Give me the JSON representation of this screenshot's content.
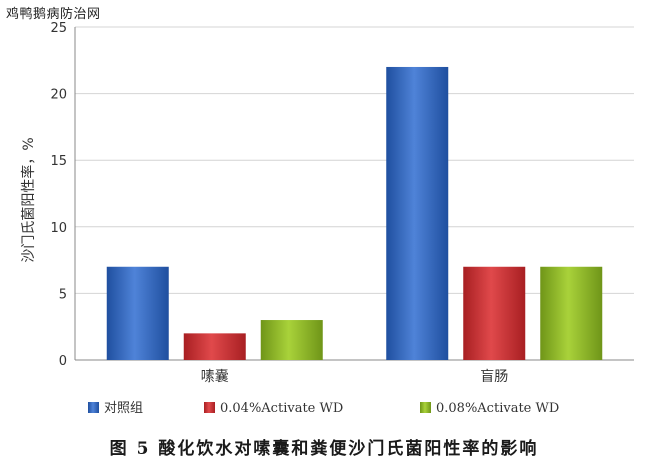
{
  "watermark": "鸡鸭鹅病防治网",
  "caption": "图 5 酸化饮水对嗉囊和粪便沙门氏菌阳性率的影响",
  "chart_data": {
    "type": "bar",
    "categories": [
      "嗉囊",
      "盲肠"
    ],
    "series": [
      {
        "name": "对照组",
        "values": [
          7,
          22
        ],
        "color": "#2e62bf"
      },
      {
        "name": "0.04%Activate WD",
        "values": [
          2,
          7
        ],
        "color": "#c8292b"
      },
      {
        "name": "0.08%Activate WD",
        "values": [
          3,
          7
        ],
        "color": "#8cb825"
      }
    ],
    "ylabel": "沙门氏菌阳性率，%",
    "ylim": [
      0,
      25
    ],
    "yticks": [
      0,
      5,
      10,
      15,
      20,
      25
    ],
    "grid": true,
    "legend": "bottom"
  }
}
